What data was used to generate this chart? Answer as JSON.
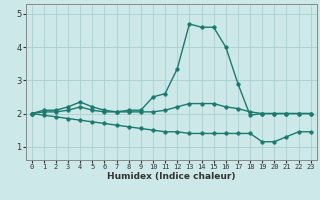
{
  "xlabel": "Humidex (Indice chaleur)",
  "ylabel": "",
  "background_color": "#cde8e8",
  "grid_color": "#aacfcf",
  "line_color": "#1a7a6e",
  "xlim": [
    -0.5,
    23.5
  ],
  "ylim": [
    0.6,
    5.3
  ],
  "yticks": [
    1,
    2,
    3,
    4,
    5
  ],
  "xticks": [
    0,
    1,
    2,
    3,
    4,
    5,
    6,
    7,
    8,
    9,
    10,
    11,
    12,
    13,
    14,
    15,
    16,
    17,
    18,
    19,
    20,
    21,
    22,
    23
  ],
  "series": [
    {
      "x": [
        0,
        1,
        2,
        3,
        4,
        5,
        6,
        7,
        8,
        9,
        10,
        11,
        12,
        13,
        14,
        15,
        16,
        17,
        18,
        19,
        20,
        21,
        22,
        23
      ],
      "y": [
        2.0,
        2.1,
        2.1,
        2.2,
        2.35,
        2.2,
        2.1,
        2.05,
        2.1,
        2.1,
        2.5,
        2.6,
        3.35,
        4.7,
        4.6,
        4.6,
        4.0,
        2.9,
        1.95,
        2.0,
        2.0,
        2.0,
        2.0,
        2.0
      ],
      "marker": "o",
      "markersize": 2.5,
      "linewidth": 1.0
    },
    {
      "x": [
        0,
        1,
        2,
        3,
        4,
        5,
        6,
        7,
        8,
        9,
        10,
        11,
        12,
        13,
        14,
        15,
        16,
        17,
        18,
        19,
        20,
        21,
        22,
        23
      ],
      "y": [
        2.0,
        2.05,
        2.05,
        2.1,
        2.2,
        2.1,
        2.05,
        2.05,
        2.05,
        2.05,
        2.05,
        2.1,
        2.2,
        2.3,
        2.3,
        2.3,
        2.2,
        2.15,
        2.05,
        2.0,
        2.0,
        2.0,
        2.0,
        2.0
      ],
      "marker": "o",
      "markersize": 2.5,
      "linewidth": 1.0
    },
    {
      "x": [
        0,
        1,
        2,
        3,
        4,
        5,
        6,
        7,
        8,
        9,
        10,
        11,
        12,
        13,
        14,
        15,
        16,
        17,
        18,
        19,
        20,
        21,
        22,
        23
      ],
      "y": [
        2.0,
        1.95,
        1.9,
        1.85,
        1.8,
        1.75,
        1.7,
        1.65,
        1.6,
        1.55,
        1.5,
        1.45,
        1.45,
        1.4,
        1.4,
        1.4,
        1.4,
        1.4,
        1.4,
        1.15,
        1.15,
        1.3,
        1.45,
        1.45
      ],
      "marker": "o",
      "markersize": 2.5,
      "linewidth": 1.0
    }
  ]
}
